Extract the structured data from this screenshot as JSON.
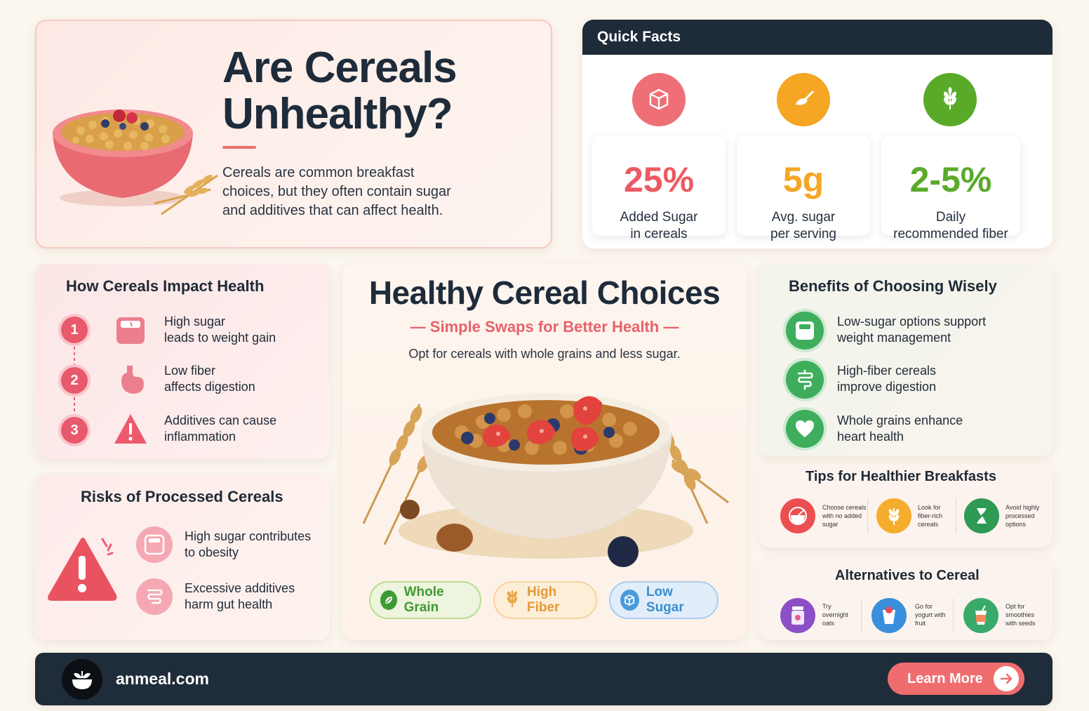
{
  "hero": {
    "title": "Are Cereals Unhealthy?",
    "description": "Cereals are common breakfast choices, but they often contain sugar and additives that can affect health."
  },
  "quick_facts": {
    "heading": "Quick Facts",
    "items": [
      {
        "value": "25%",
        "label_1": "Added Sugar",
        "label_2": "in cereals",
        "color": "#ec5a63",
        "icon": "sugar-cube-icon"
      },
      {
        "value": "5g",
        "label_1": "Avg. sugar",
        "label_2": "per serving",
        "color": "#f5a623",
        "icon": "sugar-spoon-icon"
      },
      {
        "value": "2-5%",
        "label_1": "Daily",
        "label_2": "recommended fiber",
        "color": "#5aaa2a",
        "icon": "wheat-icon"
      }
    ]
  },
  "impact": {
    "heading": "How Cereals Impact Health",
    "items": [
      {
        "num": "1",
        "line_1": "High sugar",
        "line_2": "leads to weight gain",
        "icon": "scale-icon"
      },
      {
        "num": "2",
        "line_1": "Low fiber",
        "line_2": "affects digestion",
        "icon": "stomach-icon"
      },
      {
        "num": "3",
        "line_1": "Additives can cause",
        "line_2": "inflammation",
        "icon": "warning-icon"
      }
    ]
  },
  "risks": {
    "heading": "Risks of Processed Cereals",
    "items": [
      {
        "line_1": "High sugar contributes",
        "line_2": "to obesity",
        "icon": "scale-icon"
      },
      {
        "line_1": "Excessive additives",
        "line_2": "harm gut health",
        "icon": "intestine-icon"
      }
    ]
  },
  "center": {
    "title": "Healthy Cereal Choices",
    "subtitle": "Simple Swaps for Better Health",
    "description": "Opt for cereals with whole grains and less sugar.",
    "pills": [
      {
        "label": "Whole Grain",
        "icon": "leaf-icon",
        "color": "#3f9a34"
      },
      {
        "label": "High Fiber",
        "icon": "wheat-icon",
        "color": "#e39a36"
      },
      {
        "label": "Low Sugar",
        "icon": "sugar-cube-icon",
        "color": "#3a8fd0"
      }
    ]
  },
  "benefits": {
    "heading": "Benefits of Choosing Wisely",
    "items": [
      {
        "line_1": "Low-sugar options support",
        "line_2": "weight management",
        "icon": "scale-icon"
      },
      {
        "line_1": "High-fiber cereals",
        "line_2": "improve digestion",
        "icon": "intestine-icon"
      },
      {
        "line_1": "Whole grains enhance",
        "line_2": "heart health",
        "icon": "heart-icon"
      }
    ]
  },
  "tips": {
    "heading": "Tips for Healthier Breakfasts",
    "items": [
      {
        "line_1": "Choose cereals",
        "line_2": "with no added",
        "line_3": "sugar",
        "icon": "no-sugar-icon",
        "color": "#ec4f4f"
      },
      {
        "line_1": "Look for",
        "line_2": "fiber-rich",
        "line_3": "cereals",
        "icon": "wheat-icon",
        "color": "#f5ad2e"
      },
      {
        "line_1": "Avoid highly",
        "line_2": "processed",
        "line_3": "options",
        "icon": "no-process-icon",
        "color": "#2e9a55"
      }
    ]
  },
  "alternatives": {
    "heading": "Alternatives to Cereal",
    "items": [
      {
        "line_1": "Try",
        "line_2": "overnight",
        "line_3": "oats",
        "icon": "jar-icon",
        "color": "#8c4fc6"
      },
      {
        "line_1": "Go for",
        "line_2": "yogurt with",
        "line_3": "fruit",
        "icon": "yogurt-icon",
        "color": "#3a8fdc"
      },
      {
        "line_1": "Opt for",
        "line_2": "smoothies",
        "line_3": "with seeds",
        "icon": "smoothie-icon",
        "color": "#3aaa6a"
      }
    ]
  },
  "footer": {
    "site": "anmeal.com",
    "cta": "Learn More"
  }
}
